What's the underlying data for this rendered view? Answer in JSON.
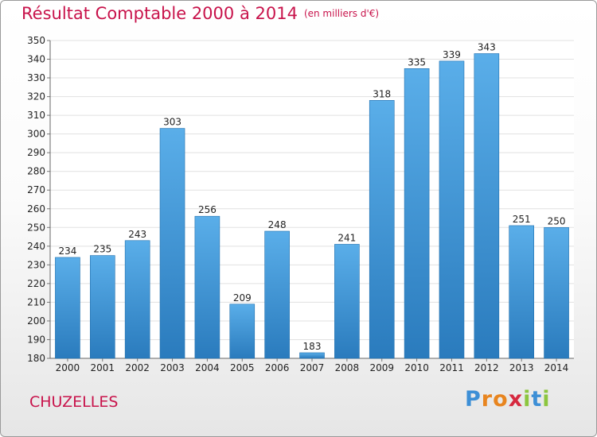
{
  "chart_data": {
    "type": "bar",
    "title": "Résultat Comptable 2000 à 2014",
    "subtitle": "(en milliers d'€)",
    "categories": [
      "2000",
      "2001",
      "2002",
      "2003",
      "2004",
      "2005",
      "2006",
      "2007",
      "2008",
      "2009",
      "2010",
      "2011",
      "2012",
      "2013",
      "2014"
    ],
    "values": [
      234,
      235,
      243,
      303,
      256,
      209,
      248,
      183,
      241,
      318,
      335,
      339,
      343,
      251,
      250
    ],
    "ylim": [
      180,
      350
    ],
    "ytick_step": 10,
    "grid": true,
    "bar_color_top": "#5aaee9",
    "bar_color_bottom": "#2a7bbd"
  },
  "footer": {
    "city": "CHUZELLES",
    "logo_letters": [
      "P",
      "r",
      "o",
      "x",
      "i",
      "t",
      "i"
    ],
    "logo_colors": [
      "#3d8fd6",
      "#e8851f",
      "#e8851f",
      "#d6293f",
      "#8cc63f",
      "#3d8fd6",
      "#8cc63f"
    ]
  }
}
